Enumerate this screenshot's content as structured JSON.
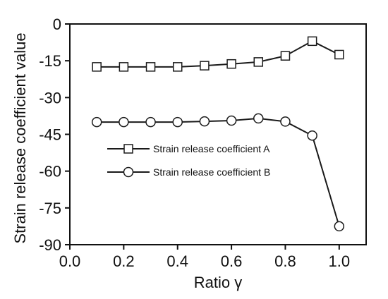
{
  "chart_data": {
    "type": "line",
    "xlabel": "Ratio γ",
    "ylabel": "Strain release coefficient value",
    "xlim": [
      0.0,
      1.1
    ],
    "ylim": [
      -90,
      0
    ],
    "x_ticks": [
      "0.0",
      "0.2",
      "0.4",
      "0.6",
      "0.8",
      "1.0"
    ],
    "y_ticks": [
      "0",
      "-15",
      "-30",
      "-45",
      "-60",
      "-75",
      "-90"
    ],
    "x_tick_values": [
      0.0,
      0.2,
      0.4,
      0.6,
      0.8,
      1.0
    ],
    "y_tick_values": [
      0,
      -15,
      -30,
      -45,
      -60,
      -75,
      -90
    ],
    "x": [
      0.1,
      0.2,
      0.3,
      0.4,
      0.5,
      0.6,
      0.7,
      0.8,
      0.9,
      1.0
    ],
    "grid": false,
    "legend_position": "center-left",
    "series": [
      {
        "name": "Strain release coefficient A",
        "marker": "square",
        "values": [
          -17.5,
          -17.5,
          -17.5,
          -17.5,
          -17.0,
          -16.3,
          -15.5,
          -13.0,
          -7.0,
          -12.5
        ]
      },
      {
        "name": "Strain release coefficient B",
        "marker": "circle",
        "values": [
          -40.0,
          -40.0,
          -40.0,
          -40.0,
          -39.7,
          -39.4,
          -38.5,
          -39.8,
          -45.5,
          -82.5
        ]
      }
    ],
    "colors": {
      "line": "#1a1a1a",
      "marker_fill": "#ffffff",
      "axis": "#111111"
    }
  }
}
